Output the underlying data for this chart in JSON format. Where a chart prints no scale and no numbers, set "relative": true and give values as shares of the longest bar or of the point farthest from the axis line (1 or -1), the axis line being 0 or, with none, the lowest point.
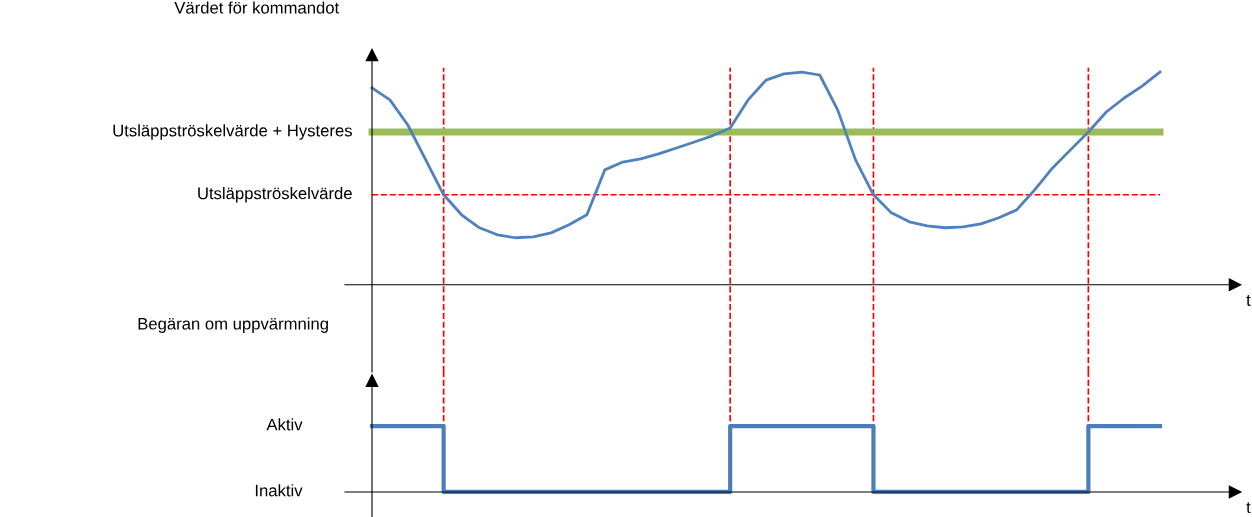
{
  "chart_data": [
    {
      "type": "line",
      "relative": true,
      "ylabel": "Värdet för kommandot",
      "xlabel": "t",
      "grid": "x",
      "marker": "none",
      "line_style": "solid",
      "categories": [
        null,
        null,
        null,
        null,
        null,
        null,
        null,
        null,
        null,
        null,
        null,
        null,
        null,
        null,
        null,
        null,
        null,
        null,
        null,
        null,
        null,
        null,
        null,
        null,
        null,
        null,
        null,
        null,
        null,
        null,
        null,
        null,
        null,
        null,
        null,
        null,
        null,
        null,
        null,
        null,
        null,
        null,
        null,
        null,
        null
      ],
      "series": [
        {
          "color": "#4f81bd",
          "values": [
            0.925,
            0.869,
            0.751,
            0.587,
            0.423,
            0.329,
            0.268,
            0.235,
            0.221,
            0.225,
            0.244,
            0.282,
            0.329,
            0.54,
            0.577,
            0.592,
            0.615,
            0.643,
            0.671,
            0.7,
            0.737,
            0.869,
            0.962,
            0.991,
            1.0,
            0.986,
            0.822,
            0.587,
            0.423,
            0.338,
            0.296,
            0.277,
            0.268,
            0.272,
            0.286,
            0.315,
            0.352,
            0.446,
            0.549,
            0.634,
            0.718,
            0.812,
            0.878,
            0.934,
            1.0
          ]
        }
      ],
      "ref_lines": [
        {
          "axis": "y",
          "value": 0.718,
          "label": "Utsläppströskelvärde + Hysteres",
          "color": "#9bbb59",
          "line_style": "solid"
        },
        {
          "axis": "y",
          "value": 0.423,
          "label": "Utsläppströskelvärde",
          "color": "#ff0000",
          "line_style": "dashed"
        }
      ]
    },
    {
      "type": "step",
      "ylabel": "Begäran om uppvärmning",
      "xlabel": "t",
      "grid": "x",
      "marker": "none",
      "line_style": "solid",
      "categories": [
        null,
        null,
        null,
        null,
        null,
        null,
        null,
        null,
        null,
        null,
        null,
        null,
        null,
        null,
        null,
        null,
        null,
        null,
        null,
        null,
        null,
        null,
        null,
        null,
        null,
        null,
        null,
        null,
        null,
        null,
        null,
        null,
        null,
        null,
        null,
        null,
        null,
        null,
        null,
        null,
        null,
        null,
        null,
        null,
        null
      ],
      "relative": true,
      "annotations": [
        "Aktiv",
        "Inaktiv"
      ],
      "series": [
        {
          "color": "#4a7ebb",
          "values": [
            1,
            1,
            1,
            1,
            0,
            0,
            0,
            0,
            0,
            0,
            0,
            0,
            0,
            0,
            0,
            0,
            0,
            0,
            0,
            0,
            1,
            1,
            1,
            1,
            1,
            1,
            1,
            1,
            0,
            0,
            0,
            0,
            0,
            0,
            0,
            0,
            0,
            0,
            0,
            0,
            1,
            1,
            1,
            1,
            1
          ]
        }
      ]
    }
  ]
}
